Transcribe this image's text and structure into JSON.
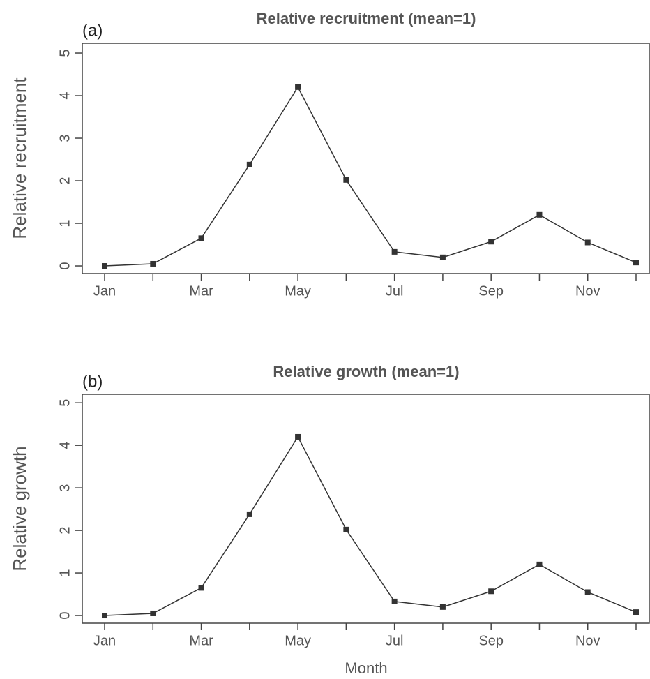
{
  "chart_data": [
    {
      "type": "line",
      "title": "Relative recruitment (mean=1)",
      "annotation": "(a)",
      "y_label": "Relative recruitment",
      "categories": [
        "Jan",
        null,
        "Mar",
        null,
        "May",
        null,
        "Jul",
        null,
        "Sep",
        null,
        "Nov",
        null
      ],
      "values": [
        0,
        0.05,
        0.65,
        2.38,
        4.2,
        2.02,
        0.33,
        0.2,
        0.57,
        1.2,
        0.55,
        0.08
      ],
      "color": "#333333",
      "ylim": [
        -0.18,
        5.23
      ],
      "yticks": [
        0,
        1,
        2,
        3,
        4,
        5
      ]
    },
    {
      "type": "line",
      "title": "Relative growth (mean=1)",
      "annotation": "(b)",
      "y_label": "Relative growth",
      "x_label": "Month",
      "categories": [
        "Jan",
        null,
        "Mar",
        null,
        "May",
        null,
        "Jul",
        null,
        "Sep",
        null,
        "Nov",
        null
      ],
      "values": [
        0,
        0.05,
        0.65,
        2.38,
        4.2,
        2.02,
        0.33,
        0.2,
        0.57,
        1.2,
        0.55,
        0.08
      ],
      "color": "#333333",
      "ylim": [
        -0.18,
        5.2
      ],
      "yticks": [
        0,
        1,
        2,
        3,
        4,
        5
      ]
    }
  ]
}
